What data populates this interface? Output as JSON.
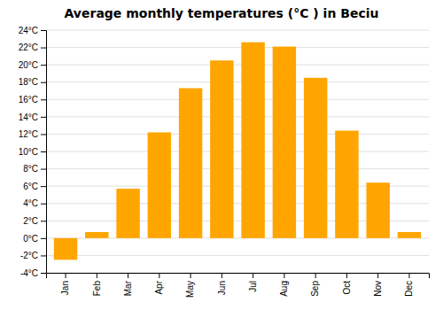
{
  "chart_data": {
    "type": "bar",
    "title": "Average monthly temperatures (°C ) in Beciu",
    "categories": [
      "Jan",
      "Feb",
      "Mar",
      "Apr",
      "May",
      "Jun",
      "Jul",
      "Aug",
      "Sep",
      "Oct",
      "Nov",
      "Dec"
    ],
    "values": [
      -2.5,
      0.7,
      5.7,
      12.2,
      17.3,
      20.5,
      22.6,
      22.1,
      18.5,
      12.4,
      6.4,
      0.7
    ],
    "color": "#FFA500",
    "ylim": [
      -4,
      24
    ],
    "yticks": [
      {
        "value": -4,
        "label": "-4°C"
      },
      {
        "value": -2,
        "label": "-2°C"
      },
      {
        "value": 0,
        "label": "0°C"
      },
      {
        "value": 2,
        "label": "2°C"
      },
      {
        "value": 4,
        "label": "4°C"
      },
      {
        "value": 6,
        "label": "6°C"
      },
      {
        "value": 8,
        "label": "8°C"
      },
      {
        "value": 10,
        "label": "10°C"
      },
      {
        "value": 12,
        "label": "12°C"
      },
      {
        "value": 14,
        "label": "14°C"
      },
      {
        "value": 16,
        "label": "16°C"
      },
      {
        "value": 18,
        "label": "18°C"
      },
      {
        "value": 20,
        "label": "20°C"
      },
      {
        "value": 22,
        "label": "22°C"
      },
      {
        "value": 24,
        "label": "24°C"
      }
    ],
    "grid": true
  }
}
